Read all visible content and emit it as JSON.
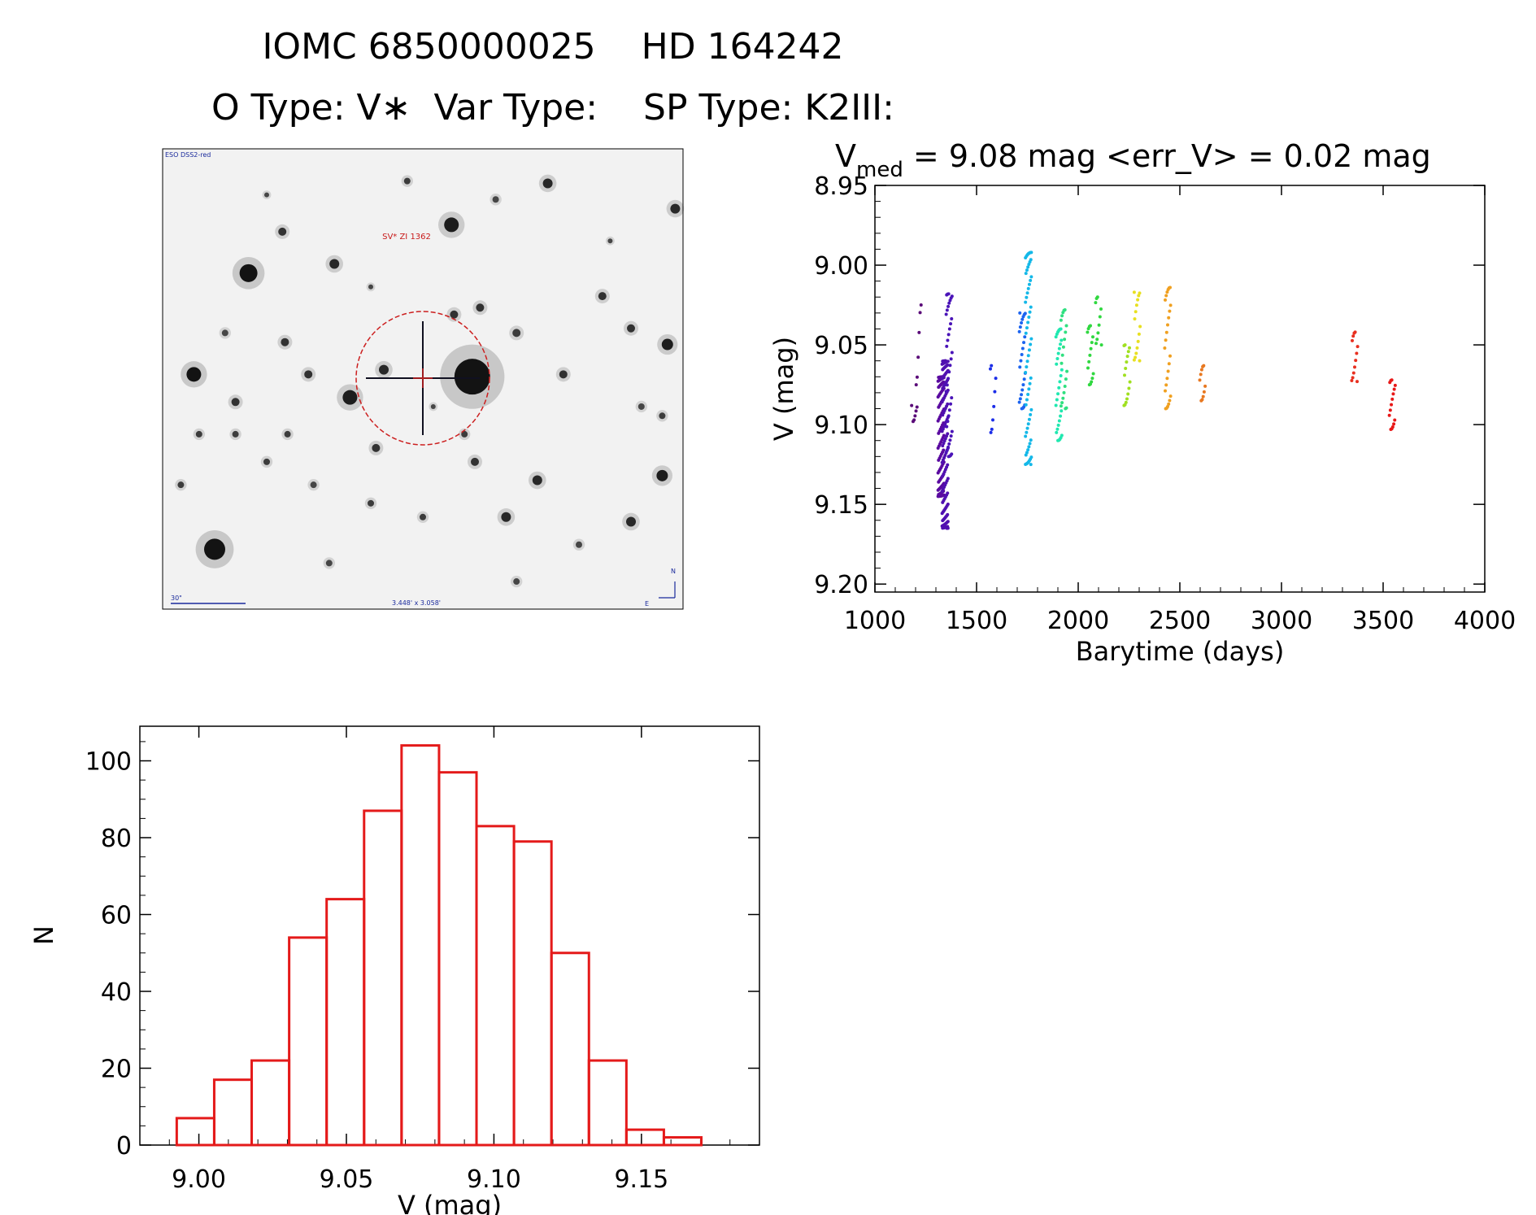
{
  "header": {
    "title_line1": "IOMC 6850000025    HD 164242",
    "title_line2": "O Type: V∗  Var Type:    SP Type: K2III:"
  },
  "finder": {
    "survey_label": "ESO DSS2-red",
    "target_label": "SV* ZI 1362",
    "scale_label": "30\"",
    "fov_label": "3.448' x 3.058'",
    "north_label": "N",
    "east_label": "E",
    "stars": [
      [
        0.595,
        0.495,
        22,
        0.95
      ],
      [
        0.165,
        0.27,
        11,
        0.95
      ],
      [
        0.06,
        0.49,
        9,
        0.95
      ],
      [
        0.555,
        0.165,
        9,
        0.9
      ],
      [
        0.1,
        0.87,
        13,
        0.95
      ],
      [
        0.97,
        0.425,
        7,
        0.9
      ],
      [
        0.74,
        0.075,
        6,
        0.85
      ],
      [
        0.985,
        0.13,
        6,
        0.85
      ],
      [
        0.96,
        0.71,
        7,
        0.9
      ],
      [
        0.72,
        0.72,
        6,
        0.85
      ],
      [
        0.66,
        0.8,
        6,
        0.85
      ],
      [
        0.33,
        0.25,
        6,
        0.85
      ],
      [
        0.28,
        0.49,
        5,
        0.8
      ],
      [
        0.36,
        0.54,
        9,
        0.9
      ],
      [
        0.425,
        0.48,
        6,
        0.85
      ],
      [
        0.61,
        0.345,
        5,
        0.8
      ],
      [
        0.68,
        0.4,
        5,
        0.75
      ],
      [
        0.845,
        0.32,
        5,
        0.8
      ],
      [
        0.9,
        0.81,
        6,
        0.85
      ],
      [
        0.77,
        0.49,
        5,
        0.8
      ],
      [
        0.24,
        0.62,
        4,
        0.75
      ],
      [
        0.41,
        0.65,
        5,
        0.8
      ],
      [
        0.6,
        0.68,
        5,
        0.8
      ],
      [
        0.9,
        0.39,
        5,
        0.8
      ],
      [
        0.235,
        0.42,
        5,
        0.8
      ],
      [
        0.07,
        0.62,
        4,
        0.75
      ],
      [
        0.14,
        0.62,
        4,
        0.75
      ],
      [
        0.2,
        0.68,
        4,
        0.75
      ],
      [
        0.035,
        0.73,
        4,
        0.75
      ],
      [
        0.56,
        0.36,
        5,
        0.8
      ],
      [
        0.4,
        0.77,
        4,
        0.75
      ],
      [
        0.23,
        0.18,
        5,
        0.8
      ],
      [
        0.14,
        0.55,
        5,
        0.8
      ],
      [
        0.96,
        0.58,
        4,
        0.75
      ],
      [
        0.5,
        0.8,
        4,
        0.75
      ],
      [
        0.47,
        0.07,
        4,
        0.75
      ],
      [
        0.92,
        0.56,
        4,
        0.7
      ],
      [
        0.64,
        0.11,
        4,
        0.7
      ],
      [
        0.12,
        0.4,
        4,
        0.7
      ],
      [
        0.29,
        0.73,
        4,
        0.7
      ],
      [
        0.52,
        0.56,
        3,
        0.7
      ],
      [
        0.8,
        0.86,
        4,
        0.7
      ],
      [
        0.32,
        0.9,
        4,
        0.7
      ],
      [
        0.68,
        0.94,
        4,
        0.7
      ],
      [
        0.86,
        0.2,
        3,
        0.7
      ],
      [
        0.4,
        0.3,
        3,
        0.7
      ],
      [
        0.2,
        0.1,
        3,
        0.7
      ],
      [
        0.58,
        0.62,
        4,
        0.75
      ]
    ]
  },
  "chart_data": [
    {
      "type": "scatter",
      "title": "V_med = 9.08 mag <err_V> = 0.02 mag",
      "title_main": "V",
      "title_sub": "med",
      "title_rest": " = 9.08 mag <err_V> = 0.02 mag",
      "xlabel": "Barytime (days)",
      "ylabel": "V (mag)",
      "xlim": [
        1000,
        4000
      ],
      "ylim": [
        9.205,
        8.95
      ],
      "xticks": [
        "1000",
        "1500",
        "2000",
        "2500",
        "3000",
        "3500",
        "4000"
      ],
      "yticks": [
        "8.95",
        "9.00",
        "9.05",
        "9.10",
        "9.15",
        "9.20"
      ],
      "groups": [
        {
          "x": 1195,
          "ymin": 9.088,
          "ymax": 9.098,
          "n": 6,
          "color": "#5a0a78"
        },
        {
          "x": 1215,
          "ymin": 9.025,
          "ymax": 9.075,
          "n": 6,
          "color": "#5a0a78"
        },
        {
          "x": 1325,
          "ymin": 9.07,
          "ymax": 9.145,
          "n": 90,
          "color": "#5a0aa0"
        },
        {
          "x": 1345,
          "ymin": 9.06,
          "ymax": 9.165,
          "n": 110,
          "color": "#5010b0"
        },
        {
          "x": 1365,
          "ymin": 9.018,
          "ymax": 9.12,
          "n": 40,
          "color": "#4a14b8"
        },
        {
          "x": 1580,
          "ymin": 9.063,
          "ymax": 9.105,
          "n": 8,
          "color": "#1c2ee8"
        },
        {
          "x": 1725,
          "ymin": 9.03,
          "ymax": 9.09,
          "n": 25,
          "color": "#1c64f0"
        },
        {
          "x": 1755,
          "ymin": 8.992,
          "ymax": 9.125,
          "n": 60,
          "color": "#14b8e8"
        },
        {
          "x": 1905,
          "ymin": 9.04,
          "ymax": 9.11,
          "n": 30,
          "color": "#20e8b0"
        },
        {
          "x": 1930,
          "ymin": 9.028,
          "ymax": 9.09,
          "n": 20,
          "color": "#30e080"
        },
        {
          "x": 2060,
          "ymin": 9.038,
          "ymax": 9.075,
          "n": 15,
          "color": "#30d840"
        },
        {
          "x": 2100,
          "ymin": 9.02,
          "ymax": 9.05,
          "n": 10,
          "color": "#30d840"
        },
        {
          "x": 2240,
          "ymin": 9.05,
          "ymax": 9.088,
          "n": 15,
          "color": "#a0e020"
        },
        {
          "x": 2290,
          "ymin": 9.017,
          "ymax": 9.06,
          "n": 15,
          "color": "#e8e020"
        },
        {
          "x": 2440,
          "ymin": 9.014,
          "ymax": 9.09,
          "n": 25,
          "color": "#f0a020"
        },
        {
          "x": 2610,
          "ymin": 9.063,
          "ymax": 9.085,
          "n": 10,
          "color": "#e87820"
        },
        {
          "x": 3360,
          "ymin": 9.042,
          "ymax": 9.073,
          "n": 12,
          "color": "#e83020"
        },
        {
          "x": 3545,
          "ymin": 9.072,
          "ymax": 9.103,
          "n": 15,
          "color": "#e81818"
        }
      ]
    },
    {
      "type": "bar",
      "title": "",
      "xlabel": "V (mag)",
      "ylabel": "N",
      "xlim": [
        8.98,
        9.19
      ],
      "ylim": [
        0,
        109
      ],
      "xticks": [
        "9.00",
        "9.05",
        "9.10",
        "9.15"
      ],
      "yticks": [
        "0",
        "20",
        "40",
        "60",
        "80",
        "100"
      ],
      "bin_width": 0.0127,
      "bin_edges_start": 8.9925,
      "values": [
        7,
        17,
        22,
        54,
        64,
        87,
        104,
        97,
        83,
        79,
        50,
        22,
        4,
        2
      ],
      "color": "#e41a1a"
    }
  ]
}
